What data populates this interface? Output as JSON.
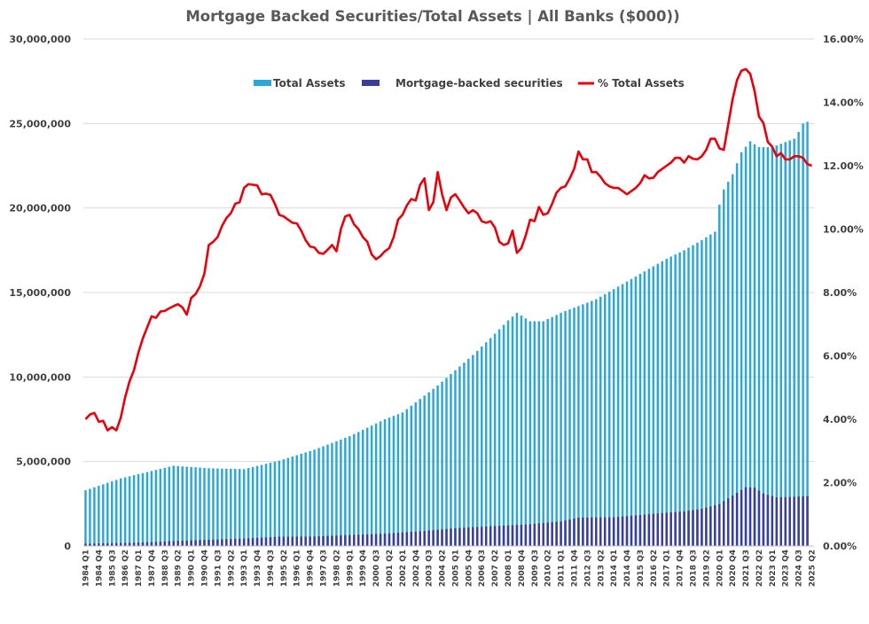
{
  "chart_data": {
    "type": "bar",
    "title": "Mortgage Backed Securities/Total Assets | All Banks ($000))",
    "ylim": [
      0,
      30000000
    ],
    "y2lim": [
      0,
      16
    ],
    "y_ticks": [
      "0",
      "5,000,000",
      "10,000,000",
      "15,000,000",
      "20,000,000",
      "25,000,000",
      "30,000,000"
    ],
    "y2_ticks": [
      "0.00%",
      "2.00%",
      "4.00%",
      "6.00%",
      "8.00%",
      "10.00%",
      "12.00%",
      "14.00%",
      "16.00%"
    ],
    "grid": true,
    "legend_position": "top-center",
    "colors": {
      "total_assets": "#2aa8d8",
      "mbs": "#3c3c9c",
      "pct": "#e8000b",
      "grid": "#d9d9d9",
      "text": "#404040",
      "title": "#595959"
    },
    "quarters": [
      "1984 Q1",
      "1984 Q2",
      "1984 Q3",
      "1984 Q4",
      "1985 Q1",
      "1985 Q2",
      "1985 Q3",
      "1985 Q4",
      "1986 Q1",
      "1986 Q2",
      "1986 Q3",
      "1986 Q4",
      "1987 Q1",
      "1987 Q2",
      "1987 Q3",
      "1987 Q4",
      "1988 Q1",
      "1988 Q2",
      "1988 Q3",
      "1988 Q4",
      "1989 Q1",
      "1989 Q2",
      "1989 Q3",
      "1989 Q4",
      "1990 Q1",
      "1990 Q2",
      "1990 Q3",
      "1990 Q4",
      "1991 Q1",
      "1991 Q2",
      "1991 Q3",
      "1991 Q4",
      "1992 Q1",
      "1992 Q2",
      "1992 Q3",
      "1992 Q4",
      "1993 Q1",
      "1993 Q2",
      "1993 Q3",
      "1993 Q4",
      "1994 Q1",
      "1994 Q2",
      "1994 Q3",
      "1994 Q4",
      "1995 Q1",
      "1995 Q2",
      "1995 Q3",
      "1995 Q4",
      "1996 Q1",
      "1996 Q2",
      "1996 Q3",
      "1996 Q4",
      "1997 Q1",
      "1997 Q2",
      "1997 Q3",
      "1997 Q4",
      "1998 Q1",
      "1998 Q2",
      "1998 Q3",
      "1998 Q4",
      "1999 Q1",
      "1999 Q2",
      "1999 Q3",
      "1999 Q4",
      "2000 Q1",
      "2000 Q2",
      "2000 Q3",
      "2000 Q4",
      "2001 Q1",
      "2001 Q2",
      "2001 Q3",
      "2001 Q4",
      "2002 Q1",
      "2002 Q2",
      "2002 Q3",
      "2002 Q4",
      "2003 Q1",
      "2003 Q2",
      "2003 Q3",
      "2003 Q4",
      "2004 Q1",
      "2004 Q2",
      "2004 Q3",
      "2004 Q4",
      "2005 Q1",
      "2005 Q2",
      "2005 Q3",
      "2005 Q4",
      "2006 Q1",
      "2006 Q2",
      "2006 Q3",
      "2006 Q4",
      "2007 Q1",
      "2007 Q2",
      "2007 Q3",
      "2007 Q4",
      "2008 Q1",
      "2008 Q2",
      "2008 Q3",
      "2008 Q4",
      "2009 Q1",
      "2009 Q2",
      "2009 Q3",
      "2009 Q4",
      "2010 Q1",
      "2010 Q2",
      "2010 Q3",
      "2010 Q4",
      "2011 Q1",
      "2011 Q2",
      "2011 Q3",
      "2011 Q4",
      "2012 Q1",
      "2012 Q2",
      "2012 Q3",
      "2012 Q4",
      "2013 Q1",
      "2013 Q2",
      "2013 Q3",
      "2013 Q4",
      "2014 Q1",
      "2014 Q2",
      "2014 Q3",
      "2014 Q4",
      "2015 Q1",
      "2015 Q2",
      "2015 Q3",
      "2015 Q4",
      "2016 Q1",
      "2016 Q2",
      "2016 Q3",
      "2016 Q4",
      "2017 Q1",
      "2017 Q2",
      "2017 Q3",
      "2017 Q4",
      "2018 Q1",
      "2018 Q2",
      "2018 Q3",
      "2018 Q4",
      "2019 Q1",
      "2019 Q2",
      "2019 Q3",
      "2019 Q4",
      "2020 Q1",
      "2020 Q2",
      "2020 Q3",
      "2020 Q4",
      "2021 Q1",
      "2021 Q2",
      "2021 Q3",
      "2021 Q4",
      "2022 Q1",
      "2022 Q2",
      "2022 Q3",
      "2022 Q4",
      "2023 Q1",
      "2023 Q2",
      "2023 Q3",
      "2023 Q4",
      "2024 Q1",
      "2024 Q2",
      "2024 Q3",
      "2024 Q4",
      "2025 Q1",
      "2025 Q2"
    ],
    "x_tick_labels": [
      "1984 Q1",
      "1984 Q4",
      "1985 Q3",
      "1986 Q2",
      "1987 Q1",
      "1987 Q4",
      "1988 Q3",
      "1989 Q2",
      "1990 Q1",
      "1990 Q4",
      "1991 Q3",
      "1992 Q2",
      "1993 Q1",
      "1993 Q4",
      "1994 Q3",
      "1995 Q2",
      "1996 Q1",
      "1996 Q4",
      "1997 Q3",
      "1998 Q2",
      "1999 Q1",
      "1999 Q4",
      "2000 Q3",
      "2001 Q2",
      "2002 Q1",
      "2002 Q4",
      "2003 Q3",
      "2004 Q2",
      "2005 Q1",
      "2005 Q4",
      "2006 Q3",
      "2007 Q2",
      "2008 Q1",
      "2008 Q4",
      "2009 Q3",
      "2010 Q2",
      "2011 Q1",
      "2011 Q4",
      "2012 Q3",
      "2013 Q2",
      "2014 Q1",
      "2014 Q4",
      "2015 Q3",
      "2016 Q2",
      "2017 Q1",
      "2017 Q4",
      "2018 Q3",
      "2019 Q2",
      "2020 Q1",
      "2020 Q4",
      "2021 Q3",
      "2022 Q2",
      "2023 Q1",
      "2023 Q4",
      "2024 Q3",
      "2025 Q2"
    ],
    "series": [
      {
        "name": "Total Assets",
        "kind": "bar",
        "axis": "left",
        "anchors": [
          [
            0,
            3300000
          ],
          [
            8,
            4000000
          ],
          [
            16,
            4500000
          ],
          [
            20,
            4750000
          ],
          [
            28,
            4600000
          ],
          [
            36,
            4550000
          ],
          [
            44,
            5050000
          ],
          [
            52,
            5700000
          ],
          [
            60,
            6500000
          ],
          [
            64,
            7000000
          ],
          [
            68,
            7500000
          ],
          [
            72,
            7900000
          ],
          [
            76,
            8700000
          ],
          [
            80,
            9500000
          ],
          [
            84,
            10400000
          ],
          [
            88,
            11300000
          ],
          [
            92,
            12300000
          ],
          [
            96,
            13350000
          ],
          [
            98,
            13800000
          ],
          [
            101,
            13300000
          ],
          [
            104,
            13300000
          ],
          [
            108,
            13800000
          ],
          [
            112,
            14200000
          ],
          [
            116,
            14600000
          ],
          [
            120,
            15200000
          ],
          [
            124,
            15800000
          ],
          [
            128,
            16400000
          ],
          [
            132,
            17000000
          ],
          [
            136,
            17500000
          ],
          [
            140,
            18100000
          ],
          [
            143,
            18600000
          ],
          [
            144,
            20200000
          ],
          [
            145,
            21100000
          ],
          [
            147,
            22000000
          ],
          [
            149,
            23300000
          ],
          [
            151,
            23950000
          ],
          [
            153,
            23600000
          ],
          [
            155,
            23600000
          ],
          [
            157,
            23700000
          ],
          [
            159,
            23900000
          ],
          [
            161,
            24100000
          ],
          [
            162,
            24500000
          ],
          [
            163,
            25000000
          ],
          [
            164,
            25100000
          ]
        ]
      },
      {
        "name": "Mortgage-backed securities",
        "kind": "bar",
        "axis": "left",
        "anchors": [
          [
            0,
            130000
          ],
          [
            12,
            200000
          ],
          [
            20,
            290000
          ],
          [
            28,
            370000
          ],
          [
            36,
            440000
          ],
          [
            44,
            550000
          ],
          [
            52,
            560000
          ],
          [
            60,
            650000
          ],
          [
            68,
            730000
          ],
          [
            76,
            870000
          ],
          [
            84,
            1050000
          ],
          [
            92,
            1170000
          ],
          [
            100,
            1270000
          ],
          [
            108,
            1450000
          ],
          [
            112,
            1680000
          ],
          [
            120,
            1700000
          ],
          [
            128,
            1880000
          ],
          [
            136,
            2050000
          ],
          [
            140,
            2200000
          ],
          [
            144,
            2480000
          ],
          [
            148,
            3150000
          ],
          [
            150,
            3480000
          ],
          [
            152,
            3450000
          ],
          [
            154,
            3100000
          ],
          [
            157,
            2880000
          ],
          [
            160,
            2900000
          ],
          [
            164,
            2950000
          ]
        ]
      },
      {
        "name": "% Total Assets",
        "kind": "line",
        "axis": "right",
        "anchors": [
          [
            0,
            4.0
          ],
          [
            1,
            4.15
          ],
          [
            2,
            4.2
          ],
          [
            3,
            3.92
          ],
          [
            4,
            3.95
          ],
          [
            5,
            3.65
          ],
          [
            6,
            3.75
          ],
          [
            7,
            3.65
          ],
          [
            8,
            4.05
          ],
          [
            9,
            4.7
          ],
          [
            10,
            5.2
          ],
          [
            11,
            5.55
          ],
          [
            12,
            6.1
          ],
          [
            13,
            6.55
          ],
          [
            14,
            6.9
          ],
          [
            15,
            7.25
          ],
          [
            16,
            7.2
          ],
          [
            17,
            7.4
          ],
          [
            18,
            7.42
          ],
          [
            19,
            7.5
          ],
          [
            20,
            7.57
          ],
          [
            21,
            7.63
          ],
          [
            22,
            7.53
          ],
          [
            23,
            7.3
          ],
          [
            24,
            7.83
          ],
          [
            25,
            7.95
          ],
          [
            26,
            8.2
          ],
          [
            27,
            8.6
          ],
          [
            28,
            9.5
          ],
          [
            29,
            9.6
          ],
          [
            30,
            9.75
          ],
          [
            31,
            10.1
          ],
          [
            32,
            10.35
          ],
          [
            33,
            10.5
          ],
          [
            34,
            10.8
          ],
          [
            35,
            10.85
          ],
          [
            36,
            11.3
          ],
          [
            37,
            11.42
          ],
          [
            38,
            11.4
          ],
          [
            39,
            11.38
          ],
          [
            40,
            11.1
          ],
          [
            41,
            11.12
          ],
          [
            42,
            11.08
          ],
          [
            43,
            10.8
          ],
          [
            44,
            10.45
          ],
          [
            45,
            10.4
          ],
          [
            46,
            10.3
          ],
          [
            47,
            10.2
          ],
          [
            48,
            10.18
          ],
          [
            49,
            9.95
          ],
          [
            50,
            9.65
          ],
          [
            51,
            9.45
          ],
          [
            52,
            9.42
          ],
          [
            53,
            9.25
          ],
          [
            54,
            9.22
          ],
          [
            55,
            9.35
          ],
          [
            56,
            9.5
          ],
          [
            57,
            9.3
          ],
          [
            58,
            10.0
          ],
          [
            59,
            10.4
          ],
          [
            60,
            10.45
          ],
          [
            61,
            10.15
          ],
          [
            62,
            10.0
          ],
          [
            63,
            9.75
          ],
          [
            64,
            9.6
          ],
          [
            65,
            9.2
          ],
          [
            66,
            9.05
          ],
          [
            67,
            9.15
          ],
          [
            68,
            9.3
          ],
          [
            69,
            9.4
          ],
          [
            70,
            9.75
          ],
          [
            71,
            10.3
          ],
          [
            72,
            10.45
          ],
          [
            73,
            10.75
          ],
          [
            74,
            10.95
          ],
          [
            75,
            10.9
          ],
          [
            76,
            11.4
          ],
          [
            77,
            11.6
          ],
          [
            78,
            10.6
          ],
          [
            79,
            10.85
          ],
          [
            80,
            11.8
          ],
          [
            81,
            11.1
          ],
          [
            82,
            10.6
          ],
          [
            83,
            11.0
          ],
          [
            84,
            11.1
          ],
          [
            85,
            10.9
          ],
          [
            86,
            10.68
          ],
          [
            87,
            10.5
          ],
          [
            88,
            10.6
          ],
          [
            89,
            10.5
          ],
          [
            90,
            10.25
          ],
          [
            91,
            10.2
          ],
          [
            92,
            10.25
          ],
          [
            93,
            10.05
          ],
          [
            94,
            9.6
          ],
          [
            95,
            9.5
          ],
          [
            96,
            9.55
          ],
          [
            97,
            9.95
          ],
          [
            98,
            9.25
          ],
          [
            99,
            9.4
          ],
          [
            100,
            9.8
          ],
          [
            101,
            10.3
          ],
          [
            102,
            10.25
          ],
          [
            103,
            10.7
          ],
          [
            104,
            10.45
          ],
          [
            105,
            10.5
          ],
          [
            106,
            10.8
          ],
          [
            107,
            11.15
          ],
          [
            108,
            11.3
          ],
          [
            109,
            11.35
          ],
          [
            110,
            11.6
          ],
          [
            111,
            11.9
          ],
          [
            112,
            12.45
          ],
          [
            113,
            12.2
          ],
          [
            114,
            12.2
          ],
          [
            115,
            11.8
          ],
          [
            116,
            11.8
          ],
          [
            117,
            11.65
          ],
          [
            118,
            11.45
          ],
          [
            119,
            11.35
          ],
          [
            120,
            11.3
          ],
          [
            121,
            11.3
          ],
          [
            122,
            11.2
          ],
          [
            123,
            11.1
          ],
          [
            124,
            11.2
          ],
          [
            125,
            11.3
          ],
          [
            126,
            11.45
          ],
          [
            127,
            11.7
          ],
          [
            128,
            11.6
          ],
          [
            129,
            11.62
          ],
          [
            130,
            11.8
          ],
          [
            131,
            11.9
          ],
          [
            132,
            12.0
          ],
          [
            133,
            12.1
          ],
          [
            134,
            12.25
          ],
          [
            135,
            12.25
          ],
          [
            136,
            12.1
          ],
          [
            137,
            12.3
          ],
          [
            138,
            12.22
          ],
          [
            139,
            12.2
          ],
          [
            140,
            12.3
          ],
          [
            141,
            12.5
          ],
          [
            142,
            12.85
          ],
          [
            143,
            12.85
          ],
          [
            144,
            12.55
          ],
          [
            145,
            12.5
          ],
          [
            146,
            13.3
          ],
          [
            147,
            14.1
          ],
          [
            148,
            14.7
          ],
          [
            149,
            15.0
          ],
          [
            150,
            15.05
          ],
          [
            151,
            14.9
          ],
          [
            152,
            14.35
          ],
          [
            153,
            13.55
          ],
          [
            154,
            13.35
          ],
          [
            155,
            12.75
          ],
          [
            156,
            12.6
          ],
          [
            157,
            12.3
          ],
          [
            158,
            12.4
          ],
          [
            159,
            12.2
          ],
          [
            160,
            12.2
          ],
          [
            161,
            12.3
          ],
          [
            162,
            12.3
          ],
          [
            163,
            12.25
          ],
          [
            164,
            12.05
          ],
          [
            165,
            12.0
          ]
        ]
      }
    ]
  }
}
